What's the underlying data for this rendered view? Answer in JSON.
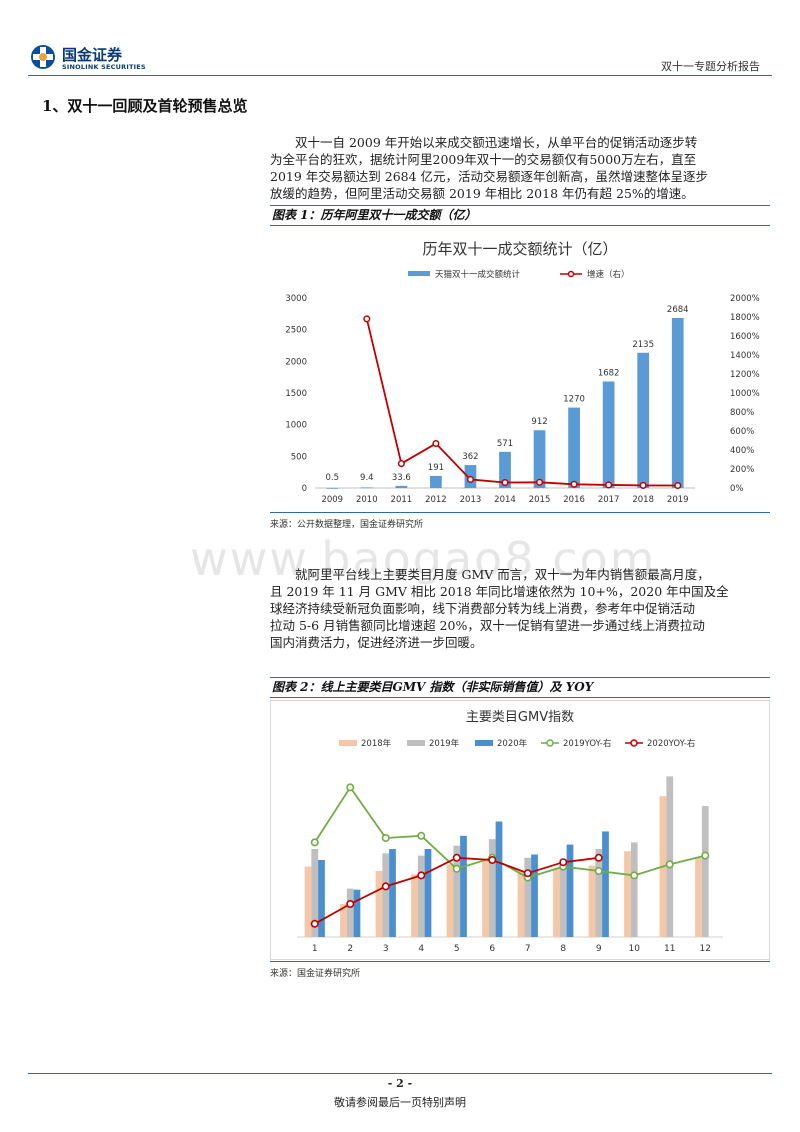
{
  "header": {
    "logo_cn": "国金证券",
    "logo_en": "SINOLINK SECURITIES",
    "report_title": "双十一专题分析报告"
  },
  "section": {
    "heading": "1、双十一回顾及首轮预售总览"
  },
  "paragraph1": [
    "双十一自 2009 年开始以来成交额迅速增长，从单平台的促销活动逐步转",
    "为全平台的狂欢，据统计阿里2009年双十一的交易额仅有5000万左右，直至",
    "2019 年交易额达到 2684 亿元，活动交易额逐年创新高，虽然增速整体呈逐步",
    "放缓的趋势，但阿里活动交易额 2019 年相比 2018 年仍有超 25%的增速。"
  ],
  "figure1": {
    "caption": "图表 1：历年阿里双十一成交额（亿）",
    "source": "来源：公开数据整理，国金证券研究所"
  },
  "paragraph2": [
    "就阿里平台线上主要类目月度 GMV 而言，双十一为年内销售额最高月度，",
    "且 2019 年 11 月 GMV 相比 2018 年同比增速依然为 10+%，2020 年中国及全",
    "球经济持续受新冠负面影响，线下消费部分转为线上消费，参考年中促销活动",
    "拉动 5-6 月销售额同比增速超 20%，双十一促销有望进一步通过线上消费拉动",
    "国内消费活力，促进经济进一步回暖。"
  ],
  "figure2": {
    "caption": "图表 2：线上主要类目GMV 指数（非实际销售值）及 YOY",
    "source": "来源：国金证券研究所"
  },
  "watermark": "www.baogao8.com",
  "footer": {
    "page": "- 2 -",
    "disclaimer": "敬请参阅最后一页特别声明"
  },
  "chart_data": [
    {
      "type": "bar",
      "title": "历年双十一成交额统计（亿）",
      "categories": [
        "2009",
        "2010",
        "2011",
        "2012",
        "2013",
        "2014",
        "2015",
        "2016",
        "2017",
        "2018",
        "2019"
      ],
      "series": [
        {
          "name": "天猫双十一成交额统计",
          "axis": "left",
          "values": [
            0.5,
            9.4,
            33.6,
            191,
            362,
            571,
            912,
            1270,
            1682,
            2135,
            2684
          ],
          "labels": [
            "0.5",
            "9.4",
            "33.6",
            "191",
            "362",
            "571",
            "912",
            "1270",
            "1682",
            "2135",
            "2684"
          ]
        },
        {
          "name": "增速（右）",
          "axis": "right",
          "type": "line",
          "values": [
            null,
            1780,
            257,
            468,
            90,
            58,
            60,
            39,
            32,
            27,
            26
          ]
        }
      ],
      "ylim": [
        0,
        3000
      ],
      "yticks": [
        "0",
        "500",
        "1000",
        "1500",
        "2000",
        "2500",
        "3000"
      ],
      "y2lim": [
        0,
        2000
      ],
      "y2ticks": [
        "0%",
        "200%",
        "400%",
        "600%",
        "800%",
        "1000%",
        "1200%",
        "1400%",
        "1600%",
        "1800%",
        "2000%"
      ],
      "legend": "top",
      "colors": {
        "bar": "#5b9bd5",
        "line": "#c00000"
      }
    },
    {
      "type": "bar",
      "title": "主要类目GMV指数",
      "categories": [
        "1",
        "2",
        "3",
        "4",
        "5",
        "6",
        "7",
        "8",
        "9",
        "10",
        "11",
        "12"
      ],
      "series": [
        {
          "name": "2018年",
          "color": "#f4c7a8",
          "values": [
            64,
            30,
            60,
            57,
            66,
            70,
            60,
            62,
            65,
            78,
            128,
            72
          ]
        },
        {
          "name": "2019年",
          "color": "#bfbfbf",
          "values": [
            80,
            44,
            76,
            74,
            83,
            89,
            72,
            70,
            80,
            86,
            146,
            119
          ]
        },
        {
          "name": "2020年",
          "color": "#4a8fd0",
          "values": [
            70,
            43,
            80,
            80,
            92,
            105,
            75,
            84,
            96,
            null,
            null,
            null
          ]
        },
        {
          "name": "2019YOY-右",
          "type": "line",
          "color": "#70ad47",
          "values": [
            103,
            128,
            105,
            106,
            91,
            96,
            87,
            92,
            90,
            88,
            93,
            97
          ]
        },
        {
          "name": "2020YOY-右",
          "type": "line",
          "color": "#c00000",
          "values": [
            66,
            75,
            83,
            88,
            96,
            95,
            89,
            94,
            96,
            null,
            null,
            null
          ]
        }
      ],
      "ylim": [
        0,
        160
      ],
      "y2lim": [
        60,
        140
      ],
      "legend": "top",
      "grid": false
    }
  ]
}
